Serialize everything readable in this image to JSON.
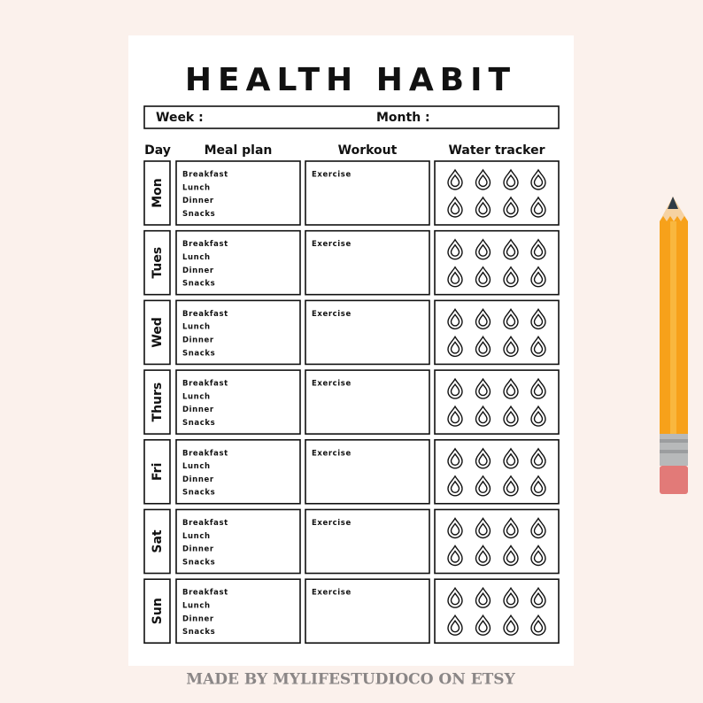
{
  "header": {
    "title": "HEALTH HABIT",
    "week_label": "Week :",
    "month_label": "Month :"
  },
  "table": {
    "columns": [
      "Day",
      "Meal plan",
      "Workout",
      "Water tracker"
    ],
    "rows": [
      {
        "day": "Mon",
        "meals": [
          "Breakfast",
          "Lunch",
          "Dinner",
          "Snacks"
        ],
        "workout": "Exercise"
      },
      {
        "day": "Tues",
        "meals": [
          "Breakfast",
          "Lunch",
          "Dinner",
          "Snacks"
        ],
        "workout": "Exercise"
      },
      {
        "day": "Wed",
        "meals": [
          "Breakfast",
          "Lunch",
          "Dinner",
          "Snacks"
        ],
        "workout": "Exercise"
      },
      {
        "day": "Thurs",
        "meals": [
          "Breakfast",
          "Lunch",
          "Dinner",
          "Snacks"
        ],
        "workout": "Exercise"
      },
      {
        "day": "Fri",
        "meals": [
          "Breakfast",
          "Lunch",
          "Dinner",
          "Snacks"
        ],
        "workout": "Exercise"
      },
      {
        "day": "Sat",
        "meals": [
          "Breakfast",
          "Lunch",
          "Dinner",
          "Snacks"
        ],
        "workout": "Exercise"
      },
      {
        "day": "Sun",
        "meals": [
          "Breakfast",
          "Lunch",
          "Dinner",
          "Snacks"
        ],
        "workout": "Exercise"
      }
    ]
  },
  "footer": "MADE BY MYLIFESTUDIOCO ON ETSY"
}
